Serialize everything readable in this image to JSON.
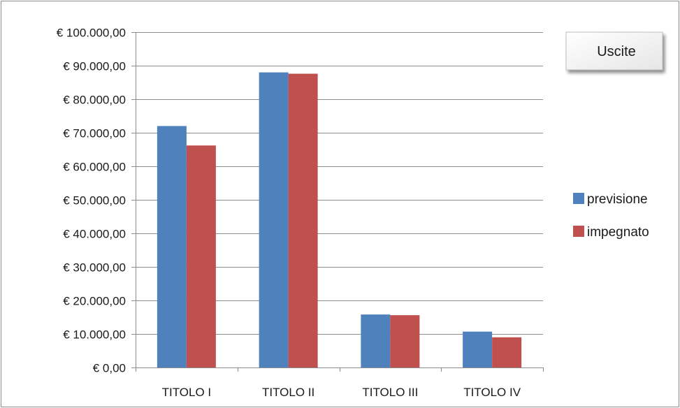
{
  "chart_data": {
    "type": "bar",
    "title": "Uscite",
    "categories": [
      "TITOLO I",
      "TITOLO II",
      "TITOLO III",
      "TITOLO IV"
    ],
    "series": [
      {
        "name": "previsione",
        "color": "#4f81bd",
        "values": [
          72000,
          88000,
          15800,
          10700
        ]
      },
      {
        "name": "impegnato",
        "color": "#c0504d",
        "values": [
          66200,
          87600,
          15600,
          9000
        ]
      }
    ],
    "ylim": [
      0,
      100000
    ],
    "yticks": [
      0,
      10000,
      20000,
      30000,
      40000,
      50000,
      60000,
      70000,
      80000,
      90000,
      100000
    ],
    "ytick_labels": [
      "€ 0,00",
      "€ 10.000,00",
      "€ 20.000,00",
      "€ 30.000,00",
      "€ 40.000,00",
      "€ 50.000,00",
      "€ 60.000,00",
      "€ 70.000,00",
      "€ 80.000,00",
      "€ 90.000,00",
      "€ 100.000,00"
    ],
    "xlabel": "",
    "ylabel": "",
    "grid": true,
    "legend_position": "right"
  }
}
